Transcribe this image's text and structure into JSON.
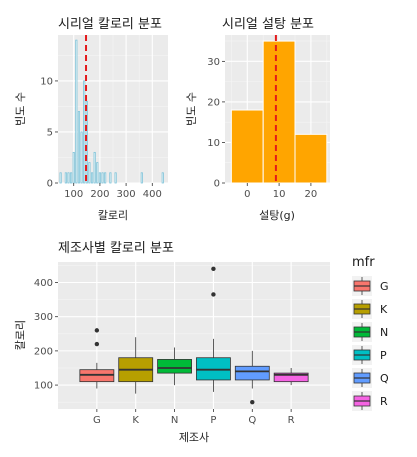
{
  "colors": {
    "panel_bg": "#ebebeb",
    "grid_major": "#ffffff",
    "hist1_fill": "#ffffff",
    "hist1_stroke": "#7ec3d9",
    "hist2_fill": "#ffa500",
    "mean_line": "#e41a1c",
    "box_stroke": "#333333"
  },
  "chart_data": [
    {
      "type": "histogram",
      "title": "시리얼 칼로리 분포",
      "xlabel": "칼로리",
      "ylabel": "빈도 수",
      "xlim": [
        40,
        460
      ],
      "ylim": [
        0,
        14.5
      ],
      "xticks": [
        100,
        200,
        300,
        400
      ],
      "yticks": [
        0,
        5,
        10
      ],
      "binwidth": 5,
      "bins": [
        {
          "x": 50,
          "count": 1
        },
        {
          "x": 70,
          "count": 1
        },
        {
          "x": 80,
          "count": 1
        },
        {
          "x": 90,
          "count": 1
        },
        {
          "x": 100,
          "count": 3
        },
        {
          "x": 110,
          "count": 14
        },
        {
          "x": 120,
          "count": 7
        },
        {
          "x": 130,
          "count": 5
        },
        {
          "x": 140,
          "count": 10
        },
        {
          "x": 150,
          "count": 8
        },
        {
          "x": 160,
          "count": 2
        },
        {
          "x": 170,
          "count": 1
        },
        {
          "x": 180,
          "count": 3
        },
        {
          "x": 190,
          "count": 2
        },
        {
          "x": 200,
          "count": 1
        },
        {
          "x": 210,
          "count": 1
        },
        {
          "x": 220,
          "count": 1
        },
        {
          "x": 240,
          "count": 1
        },
        {
          "x": 260,
          "count": 1
        },
        {
          "x": 360,
          "count": 1
        },
        {
          "x": 440,
          "count": 1
        }
      ],
      "mean_line_x": 147
    },
    {
      "type": "histogram",
      "title": "시리얼 설탕 분포",
      "xlabel": "설탕(g)",
      "ylabel": "빈도 수",
      "xlim": [
        -7,
        26
      ],
      "ylim": [
        0,
        36.5
      ],
      "xticks": [
        0,
        10,
        20
      ],
      "yticks": [
        0,
        10,
        20,
        30
      ],
      "bins": [
        {
          "x0": -5,
          "x1": 5,
          "count": 18
        },
        {
          "x0": 5,
          "x1": 15,
          "count": 35
        },
        {
          "x0": 15,
          "x1": 25,
          "count": 12
        }
      ],
      "mean_line_x": 9
    },
    {
      "type": "boxplot",
      "title": "제조사별 칼로리 분포",
      "xlabel": "제조사",
      "ylabel": "칼로리",
      "ylim": [
        30,
        460
      ],
      "yticks": [
        100,
        200,
        300,
        400
      ],
      "categories": [
        "G",
        "K",
        "N",
        "P",
        "Q",
        "R"
      ],
      "legend_title": "mfr",
      "legend_position": "right",
      "series": [
        {
          "name": "G",
          "color": "#f8766d",
          "whisker_low": 90,
          "q1": 110,
          "median": 130,
          "q3": 145,
          "whisker_high": 165,
          "outliers": [
            220,
            260
          ]
        },
        {
          "name": "K",
          "color": "#b79f00",
          "whisker_low": 75,
          "q1": 110,
          "median": 145,
          "q3": 180,
          "whisker_high": 240,
          "outliers": []
        },
        {
          "name": "N",
          "color": "#00ba38",
          "whisker_low": 100,
          "q1": 135,
          "median": 150,
          "q3": 175,
          "whisker_high": 210,
          "outliers": []
        },
        {
          "name": "P",
          "color": "#00bfc4",
          "whisker_low": 80,
          "q1": 115,
          "median": 145,
          "q3": 180,
          "whisker_high": 235,
          "outliers": [
            365,
            440
          ]
        },
        {
          "name": "Q",
          "color": "#619cff",
          "whisker_low": 90,
          "q1": 115,
          "median": 140,
          "q3": 155,
          "whisker_high": 200,
          "outliers": [
            50
          ]
        },
        {
          "name": "R",
          "color": "#f564e3",
          "whisker_low": 100,
          "q1": 110,
          "median": 130,
          "q3": 135,
          "whisker_high": 150,
          "outliers": []
        }
      ]
    }
  ]
}
